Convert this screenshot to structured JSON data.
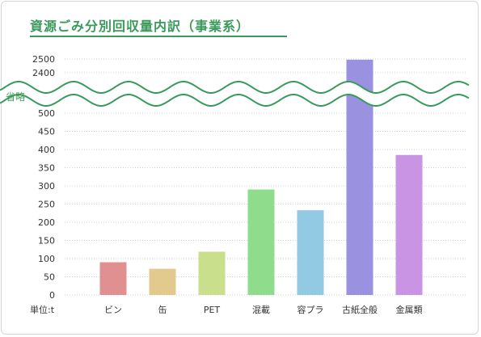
{
  "title": "資源ごみ分別回収量内訳（事業系）",
  "colors": {
    "accent": "#3a9a5c",
    "grid": "#cfcfcf"
  },
  "chart_data": {
    "type": "bar",
    "title": "資源ごみ分別回収量内訳（事業系）",
    "unit_label": "単位:t",
    "omission_label": "省略",
    "categories": [
      "ビン",
      "缶",
      "PET",
      "混載",
      "容プラ",
      "古紙全般",
      "金属類"
    ],
    "values": [
      90,
      72,
      119,
      290,
      233,
      2495,
      385
    ],
    "bar_colors": [
      "#e09090",
      "#e2c98e",
      "#c9df8c",
      "#8fdc8c",
      "#93cae3",
      "#9a92e0",
      "#c994e3"
    ],
    "lower_ticks": [
      "0",
      "50",
      "100",
      "150",
      "200",
      "250",
      "300",
      "350",
      "400",
      "450",
      "500"
    ],
    "upper_ticks": [
      "2400",
      "2500"
    ],
    "lower_range": [
      0,
      500
    ],
    "upper_range": [
      2400,
      2500
    ],
    "grid": true
  }
}
